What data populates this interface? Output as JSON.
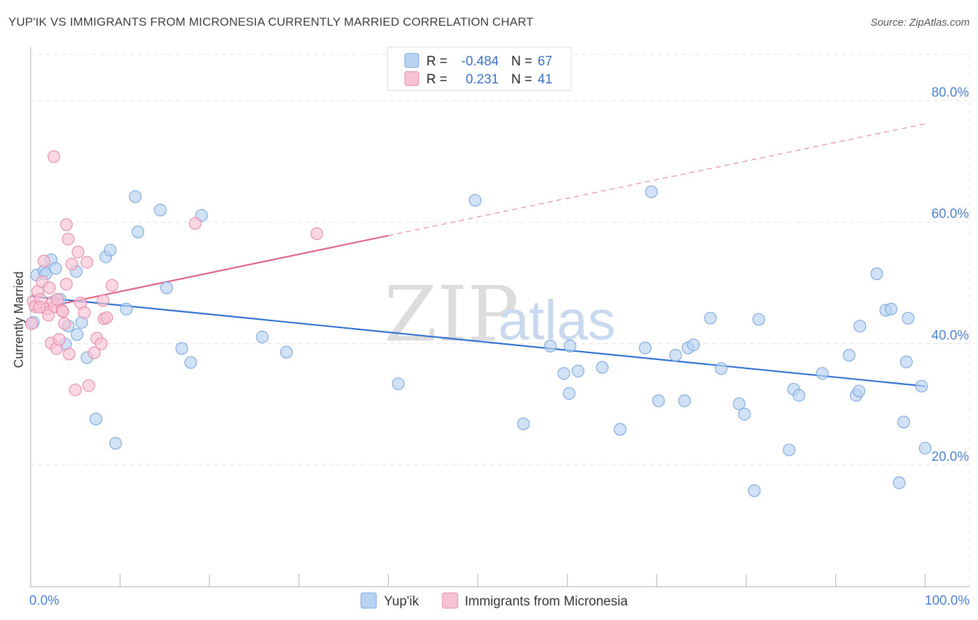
{
  "title": "YUP'IK VS IMMIGRANTS FROM MICRONESIA CURRENTLY MARRIED CORRELATION CHART",
  "source": "Source: ZipAtlas.com",
  "watermark": {
    "zip": "ZIP",
    "atlas": "atlas"
  },
  "colors": {
    "blue_fill": "#b9d3f3",
    "blue_stroke": "#7aa6e0",
    "blue_line": "#2f6fd0",
    "pink_fill": "#f7c2d4",
    "pink_stroke": "#e68aa8",
    "pink_line": "#e0608a",
    "tick_text": "#4a7fcf",
    "grid": "#e2e2e2"
  },
  "legend": {
    "rows": [
      {
        "r_label": "R =",
        "r_value": "-0.484",
        "n_label": "N =",
        "n_value": "67",
        "series": "Yup'ik"
      },
      {
        "r_label": "R =",
        "r_value": "0.231",
        "n_label": "N =",
        "n_value": "41",
        "series": "Immigrants from Micronesia"
      }
    ]
  },
  "chart_data": {
    "type": "scatter",
    "title": "YUP'IK VS IMMIGRANTS FROM MICRONESIA CURRENTLY MARRIED CORRELATION CHART",
    "xlabel": "",
    "ylabel": "Currently Married",
    "xlim": [
      0,
      100
    ],
    "ylim": [
      0,
      88
    ],
    "x_tick_labels": [
      "0.0%",
      "100.0%"
    ],
    "y_ticks": [
      20,
      40,
      60,
      80
    ],
    "y_tick_labels": [
      "20.0%",
      "40.0%",
      "60.0%",
      "80.0%"
    ],
    "grid": true,
    "legend_position": "top-center",
    "series": [
      {
        "name": "Yup'ik",
        "color": "#b9d3f3",
        "points": [
          [
            0.3,
            43.5
          ],
          [
            0.7,
            51.3
          ],
          [
            1.5,
            52.0
          ],
          [
            1.7,
            51.5
          ],
          [
            2.3,
            53.8
          ],
          [
            2.8,
            52.4
          ],
          [
            3.3,
            47.3
          ],
          [
            3.9,
            39.9
          ],
          [
            4.2,
            42.9
          ],
          [
            5.1,
            51.9
          ],
          [
            5.2,
            41.5
          ],
          [
            5.7,
            43.5
          ],
          [
            6.3,
            37.7
          ],
          [
            7.3,
            27.6
          ],
          [
            8.4,
            54.3
          ],
          [
            8.9,
            55.4
          ],
          [
            9.5,
            23.6
          ],
          [
            10.7,
            45.7
          ],
          [
            11.7,
            64.2
          ],
          [
            12.0,
            58.4
          ],
          [
            14.5,
            62.0
          ],
          [
            15.2,
            49.2
          ],
          [
            16.9,
            39.2
          ],
          [
            17.9,
            36.9
          ],
          [
            19.1,
            61.1
          ],
          [
            25.9,
            41.1
          ],
          [
            28.6,
            38.6
          ],
          [
            41.1,
            33.4
          ],
          [
            49.7,
            63.6
          ],
          [
            55.1,
            26.8
          ],
          [
            58.1,
            39.6
          ],
          [
            59.6,
            35.1
          ],
          [
            60.2,
            31.8
          ],
          [
            60.3,
            39.6
          ],
          [
            61.2,
            35.5
          ],
          [
            63.9,
            36.1
          ],
          [
            65.9,
            25.9
          ],
          [
            68.7,
            39.3
          ],
          [
            69.4,
            65.0
          ],
          [
            70.2,
            30.6
          ],
          [
            72.1,
            38.1
          ],
          [
            73.1,
            30.6
          ],
          [
            73.5,
            39.3
          ],
          [
            74.1,
            39.8
          ],
          [
            76.0,
            44.2
          ],
          [
            77.2,
            35.9
          ],
          [
            79.2,
            30.1
          ],
          [
            79.8,
            28.4
          ],
          [
            80.9,
            15.8
          ],
          [
            81.4,
            44.0
          ],
          [
            84.8,
            22.5
          ],
          [
            85.3,
            32.5
          ],
          [
            85.9,
            31.5
          ],
          [
            88.5,
            35.1
          ],
          [
            91.5,
            38.1
          ],
          [
            92.3,
            31.5
          ],
          [
            92.6,
            32.2
          ],
          [
            92.7,
            42.9
          ],
          [
            94.6,
            51.5
          ],
          [
            95.6,
            45.5
          ],
          [
            96.2,
            45.7
          ],
          [
            97.1,
            17.1
          ],
          [
            97.6,
            27.1
          ],
          [
            97.9,
            37.0
          ],
          [
            98.1,
            44.2
          ],
          [
            99.6,
            33.0
          ],
          [
            100.0,
            22.8
          ]
        ]
      },
      {
        "name": "Immigrants from Micronesia",
        "color": "#f7c2d4",
        "points": [
          [
            0.1,
            43.3
          ],
          [
            0.3,
            47.0
          ],
          [
            0.5,
            46.1
          ],
          [
            0.8,
            48.6
          ],
          [
            1.1,
            47.3
          ],
          [
            1.3,
            50.2
          ],
          [
            1.5,
            53.6
          ],
          [
            1.8,
            45.7
          ],
          [
            2.0,
            44.7
          ],
          [
            2.1,
            49.2
          ],
          [
            2.3,
            40.1
          ],
          [
            2.5,
            46.9
          ],
          [
            2.7,
            46.1
          ],
          [
            2.9,
            39.2
          ],
          [
            3.0,
            47.3
          ],
          [
            3.2,
            40.7
          ],
          [
            3.5,
            45.5
          ],
          [
            3.8,
            43.3
          ],
          [
            4.0,
            49.8
          ],
          [
            4.0,
            59.6
          ],
          [
            4.2,
            57.2
          ],
          [
            4.3,
            38.3
          ],
          [
            4.6,
            53.1
          ],
          [
            5.0,
            32.4
          ],
          [
            5.3,
            55.1
          ],
          [
            5.6,
            46.7
          ],
          [
            6.0,
            45.1
          ],
          [
            6.3,
            53.4
          ],
          [
            6.5,
            33.1
          ],
          [
            7.1,
            38.5
          ],
          [
            7.4,
            40.9
          ],
          [
            7.9,
            40.0
          ],
          [
            8.1,
            47.1
          ],
          [
            8.2,
            44.1
          ],
          [
            8.5,
            44.3
          ],
          [
            9.1,
            49.6
          ],
          [
            2.6,
            70.8
          ],
          [
            18.4,
            59.8
          ],
          [
            32.0,
            58.1
          ],
          [
            3.6,
            45.3
          ],
          [
            1.0,
            46.0
          ]
        ]
      }
    ],
    "trend_lines": [
      {
        "series": "Yup'ik",
        "x": [
          0,
          100
        ],
        "y": [
          47.8,
          33.0
        ]
      },
      {
        "series": "Immigrants from Micronesia",
        "x": [
          0,
          40
        ],
        "y": [
          45.5,
          57.8
        ],
        "dashed_extension_to": [
          100,
          76.2
        ]
      }
    ]
  }
}
